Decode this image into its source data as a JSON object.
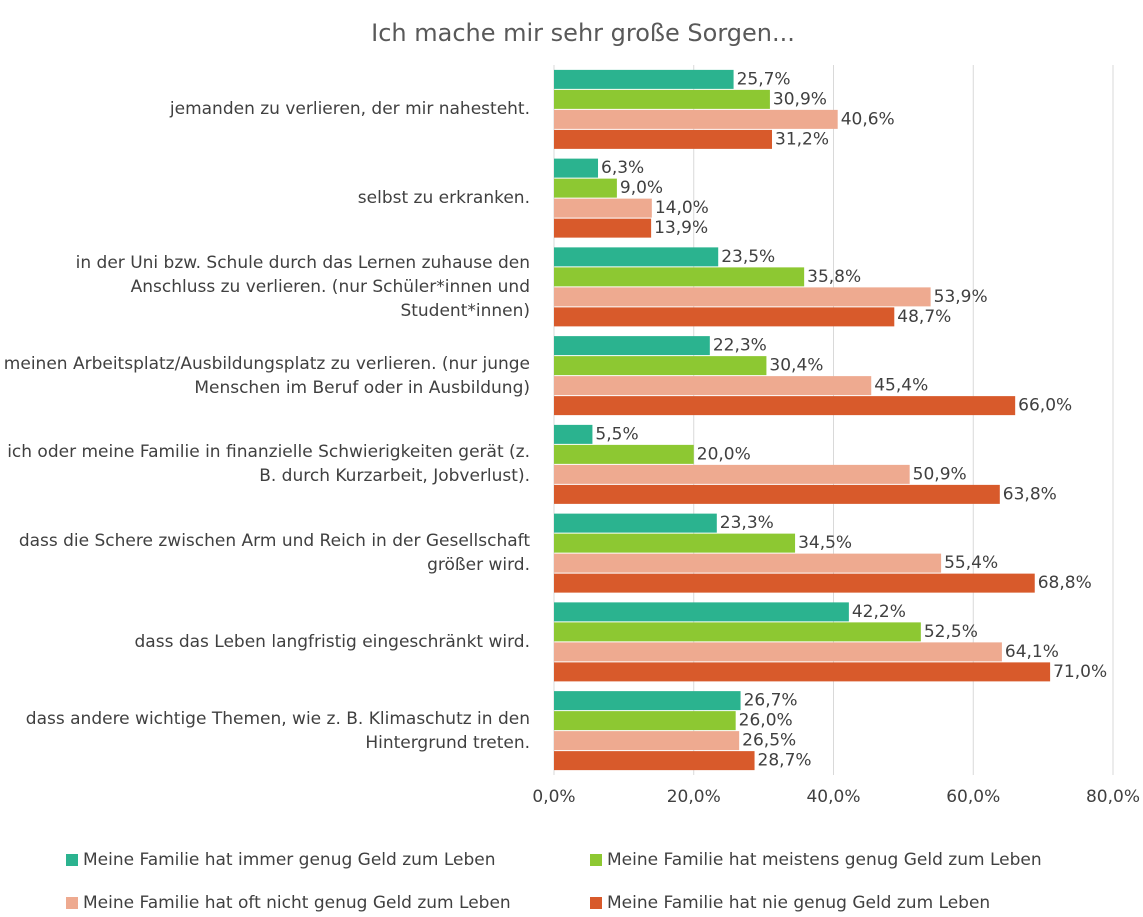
{
  "chart_data": {
    "type": "bar",
    "orientation": "horizontal",
    "title": "Ich mache mir sehr große Sorgen...",
    "categories": [
      "jemanden zu verlieren, der mir nahesteht.",
      "selbst zu erkranken.",
      "in der Uni bzw. Schule durch das Lernen zuhause den Anschluss zu verlieren. (nur Schüler*innen und Student*innen)",
      "meinen Arbeitsplatz/Ausbildungsplatz zu verlieren. (nur junge Menschen im Beruf oder in Ausbildung)",
      "ich oder meine Familie in finanzielle Schwierigkeiten gerät (z. B. durch Kurzarbeit, Jobverlust).",
      "dass die Schere zwischen Arm und Reich in der Gesellschaft größer wird.",
      "dass das Leben langfristig eingeschränkt wird.",
      "dass andere wichtige Themen, wie z. B. Klimaschutz in den Hintergrund treten."
    ],
    "series": [
      {
        "name": "Meine Familie hat immer genug Geld zum Leben",
        "color": "#2bb38f",
        "values": [
          25.7,
          6.3,
          23.5,
          22.3,
          5.5,
          23.3,
          42.2,
          26.7
        ],
        "value_labels": [
          "25,7%",
          "6,3%",
          "23,5%",
          "22,3%",
          "5,5%",
          "23,3%",
          "42,2%",
          "26,7%"
        ]
      },
      {
        "name": "Meine Familie hat meistens genug Geld zum Leben",
        "color": "#8dc832",
        "values": [
          30.9,
          9.0,
          35.8,
          30.4,
          20.0,
          34.5,
          52.5,
          26.0
        ],
        "value_labels": [
          "30,9%",
          "9,0%",
          "35,8%",
          "30,4%",
          "20,0%",
          "34,5%",
          "52,5%",
          "26,0%"
        ]
      },
      {
        "name": "Meine Familie hat oft nicht genug Geld zum Leben",
        "color": "#eeaa90",
        "values": [
          40.6,
          14.0,
          53.9,
          45.4,
          50.9,
          55.4,
          64.1,
          26.5
        ],
        "value_labels": [
          "40,6%",
          "14,0%",
          "53,9%",
          "45,4%",
          "50,9%",
          "55,4%",
          "64,1%",
          "26,5%"
        ]
      },
      {
        "name": "Meine Familie hat nie genug Geld zum Leben",
        "color": "#d85a2b",
        "values": [
          31.2,
          13.9,
          48.7,
          66.0,
          63.8,
          68.8,
          71.0,
          28.7
        ],
        "value_labels": [
          "31,2%",
          "13,9%",
          "48,7%",
          "66,0%",
          "63,8%",
          "68,8%",
          "71,0%",
          "28,7%"
        ]
      }
    ],
    "xlim": [
      0,
      80
    ],
    "xticks": [
      {
        "value": 0,
        "label": "0,0%"
      },
      {
        "value": 20,
        "label": "20,0%"
      },
      {
        "value": 40,
        "label": "40,0%"
      },
      {
        "value": 60,
        "label": "60,0%"
      },
      {
        "value": 80,
        "label": "80,0%"
      }
    ],
    "grid": true,
    "legend": "bottom"
  }
}
